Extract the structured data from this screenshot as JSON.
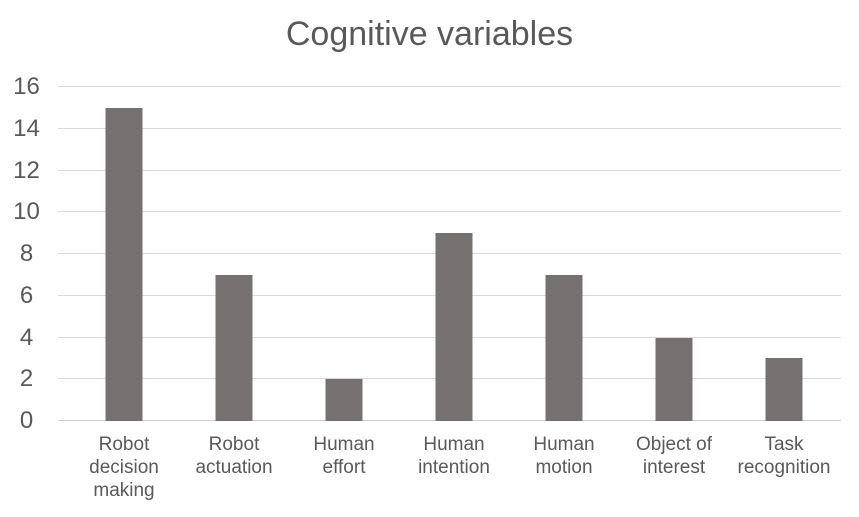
{
  "chart_data": {
    "type": "bar",
    "title": "Cognitive variables",
    "categories": [
      "Robot decision making",
      "Robot actuation",
      "Human effort",
      "Human intention",
      "Human motion",
      "Object of interest",
      "Task recognition"
    ],
    "values": [
      15,
      7,
      2,
      9,
      7,
      4,
      3
    ],
    "xlabel": "",
    "ylabel": "",
    "ylim": [
      0,
      16
    ],
    "yticks": [
      16,
      14,
      12,
      10,
      8,
      6,
      4,
      2,
      0
    ],
    "grid": true,
    "legend": false,
    "bar_color": "#767171",
    "gridline_color": "#d9d9d9",
    "baseline_color": "#cfcdcd",
    "text_color": "#595959",
    "background_color": "#ffffff"
  }
}
